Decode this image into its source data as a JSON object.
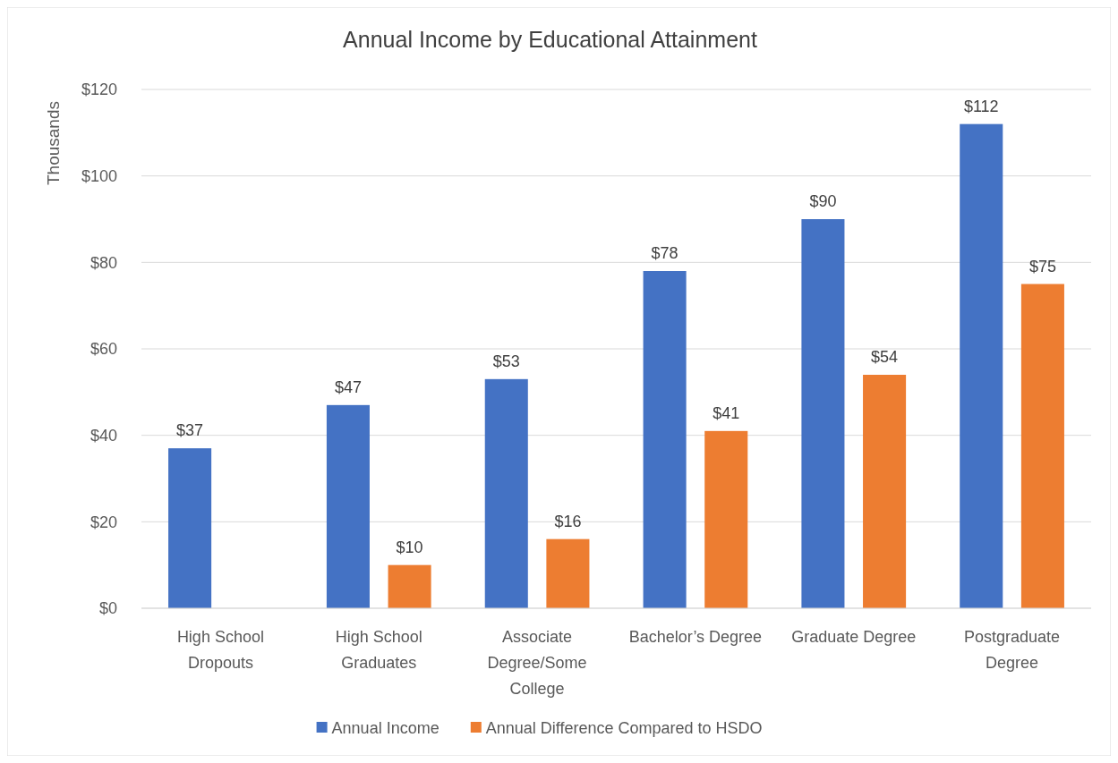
{
  "chart_data": {
    "type": "bar",
    "title": "Annual Income by Educational Attainment",
    "ylabel": "Thousands",
    "categories": [
      "High School Dropouts",
      "High School Graduates",
      "Associate Degree/Some College",
      "Bachelor’s Degree",
      "Graduate Degree",
      "Postgraduate Degree"
    ],
    "series": [
      {
        "name": "Annual Income",
        "color": "#4472c4",
        "values": [
          37,
          47,
          53,
          78,
          90,
          112
        ],
        "value_labels": [
          "$37",
          "$47",
          "$53",
          "$78",
          "$90",
          "$112"
        ]
      },
      {
        "name": "Annual Difference Compared to HSDO",
        "color": "#ed7d31",
        "values": [
          null,
          10,
          16,
          41,
          54,
          75
        ],
        "value_labels": [
          null,
          "$10",
          "$16",
          "$41",
          "$54",
          "$75"
        ]
      }
    ],
    "ylim": [
      0,
      120
    ],
    "yticks": [
      {
        "value": 0,
        "label": "$0"
      },
      {
        "value": 20,
        "label": "$20"
      },
      {
        "value": 40,
        "label": "$40"
      },
      {
        "value": 60,
        "label": "$60"
      },
      {
        "value": 80,
        "label": "$80"
      },
      {
        "value": 100,
        "label": "$100"
      },
      {
        "value": 120,
        "label": "$120"
      }
    ],
    "grid": "y",
    "legend": "bottom"
  }
}
